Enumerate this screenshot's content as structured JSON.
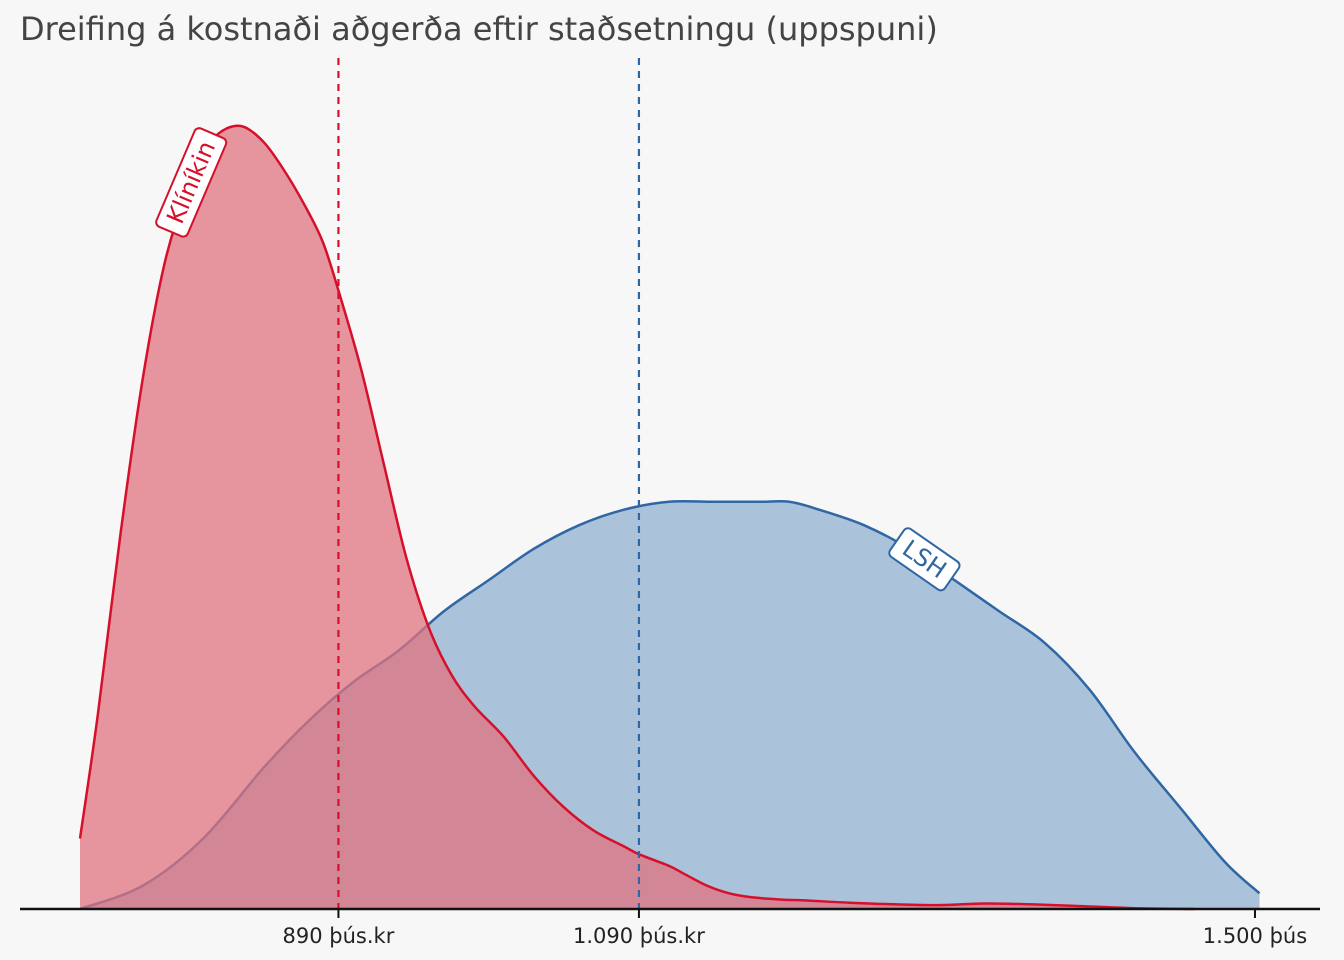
{
  "title": "Dreifing á kostnaði aðgerða eftir staðsetningu (uppspuni)",
  "chart_data": {
    "type": "area",
    "title": "Dreifing á kostnaði aðgerða eftir staðsetningu (uppspuni)",
    "xlabel": "",
    "ylabel": "",
    "x_range": [
      718,
      1510
    ],
    "ticks": [
      {
        "value": 890,
        "label": "890 þús.kr"
      },
      {
        "value": 1090,
        "label": "1.090 þús.kr"
      },
      {
        "value": 1500,
        "label": "1.500 þús"
      }
    ],
    "grid": false,
    "legend": "none",
    "series": [
      {
        "name": "Klíníkin",
        "color": "#d6102b",
        "fill": "#e0737f",
        "mean": 890,
        "label_at": 792,
        "x": [
          718,
          730,
          745,
          760,
          775,
          790,
          800,
          810,
          825,
          840,
          855,
          870,
          880,
          890,
          905,
          920,
          935,
          950,
          965,
          980,
          1000,
          1020,
          1040,
          1060,
          1080,
          1090,
          1110,
          1120,
          1135,
          1150,
          1165,
          1185,
          1200,
          1230,
          1260,
          1290,
          1320,
          1350,
          1380,
          1420,
          1460
        ],
        "y": [
          0.09,
          0.25,
          0.48,
          0.68,
          0.83,
          0.92,
          0.96,
          0.99,
          1.0,
          0.98,
          0.94,
          0.89,
          0.85,
          0.79,
          0.69,
          0.57,
          0.45,
          0.36,
          0.3,
          0.26,
          0.22,
          0.17,
          0.13,
          0.1,
          0.08,
          0.07,
          0.055,
          0.045,
          0.03,
          0.02,
          0.015,
          0.012,
          0.011,
          0.008,
          0.006,
          0.005,
          0.007,
          0.006,
          0.004,
          0.001,
          0.0
        ]
      },
      {
        "name": "LSH",
        "color": "#2f66a4",
        "fill": "#9db8d6",
        "mean": 1090,
        "label_at": 1280,
        "x": [
          718,
          760,
          800,
          840,
          870,
          900,
          930,
          960,
          990,
          1020,
          1050,
          1080,
          1110,
          1140,
          1170,
          1190,
          1210,
          1240,
          1270,
          1300,
          1330,
          1360,
          1390,
          1420,
          1450,
          1480,
          1503
        ],
        "y": [
          0.0,
          0.03,
          0.09,
          0.18,
          0.24,
          0.29,
          0.33,
          0.38,
          0.42,
          0.46,
          0.49,
          0.51,
          0.52,
          0.52,
          0.52,
          0.52,
          0.51,
          0.49,
          0.46,
          0.42,
          0.38,
          0.34,
          0.28,
          0.2,
          0.13,
          0.06,
          0.02
        ]
      }
    ]
  }
}
